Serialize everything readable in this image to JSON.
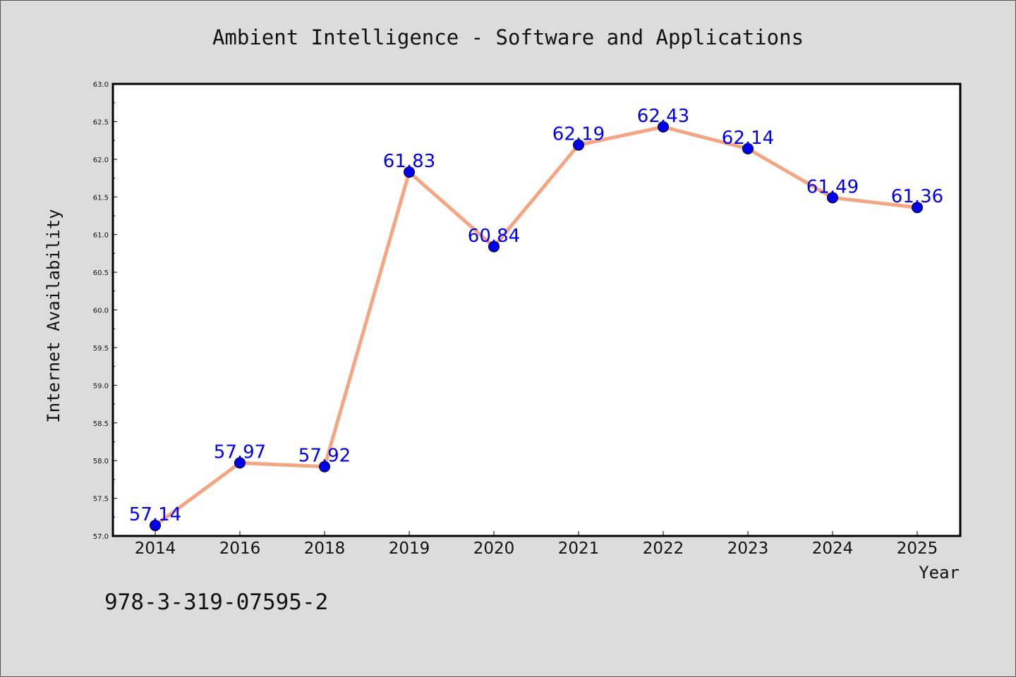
{
  "chart_data": {
    "type": "line",
    "title": "Ambient Intelligence - Software and Applications",
    "xlabel": "Year",
    "ylabel": "Internet Availability",
    "categories": [
      "2014",
      "2016",
      "2018",
      "2019",
      "2020",
      "2021",
      "2022",
      "2023",
      "2024",
      "2025"
    ],
    "series": [
      {
        "values": [
          57.14,
          57.97,
          57.92,
          61.83,
          60.84,
          62.19,
          62.43,
          62.14,
          61.49,
          61.36
        ],
        "data_labels": [
          "57.14",
          "57.97",
          "57.92",
          "61.83",
          "60.84",
          "62.19",
          "62.43",
          "62.14",
          "61.49",
          "61.36"
        ]
      }
    ],
    "ylim": [
      57.0,
      63.0
    ],
    "yticks": [
      "57.0",
      "57.5",
      "58.0",
      "58.5",
      "59.0",
      "59.5",
      "60.0",
      "60.5",
      "61.0",
      "61.5",
      "62.0",
      "62.5",
      "63.0"
    ],
    "grid": false,
    "legend": "none",
    "colors": {
      "line": "#f4a582",
      "marker": "#0000ee",
      "data_label": "#0000ee",
      "plot_background": "#ffffff",
      "figure_background": "#dcdcdc"
    }
  },
  "footer_text": "978-3-319-07595-2"
}
